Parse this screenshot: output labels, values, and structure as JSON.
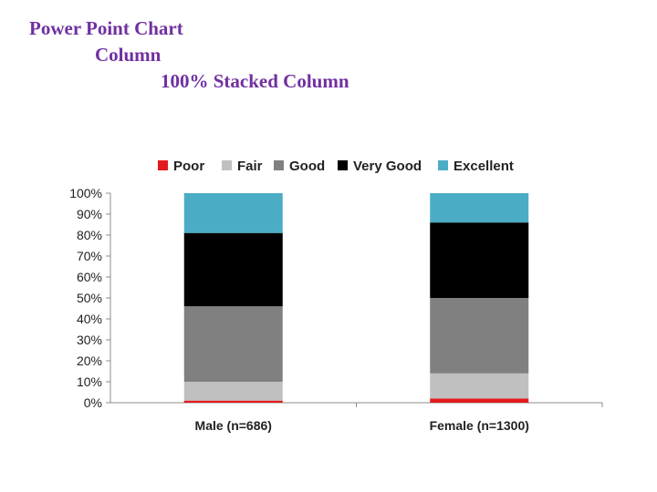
{
  "heading": {
    "line1": "Power Point Chart",
    "line2": "Column",
    "line3": "100% Stacked Column"
  },
  "chart_data": {
    "type": "bar",
    "stacked": "100%",
    "categories": [
      "Male (n=686)",
      "Female (n=1300)"
    ],
    "series": [
      {
        "name": "Poor",
        "color": "#e31a1c",
        "values": [
          1,
          2
        ]
      },
      {
        "name": "Fair",
        "color": "#c0c0c0",
        "values": [
          9,
          12
        ]
      },
      {
        "name": "Good",
        "color": "#808080",
        "values": [
          36,
          36
        ]
      },
      {
        "name": "Very Good",
        "color": "#000000",
        "values": [
          35,
          36
        ]
      },
      {
        "name": "Excellent",
        "color": "#4bacc6",
        "values": [
          19,
          14
        ]
      }
    ],
    "yticks": [
      "0%",
      "10%",
      "20%",
      "30%",
      "40%",
      "50%",
      "60%",
      "70%",
      "80%",
      "90%",
      "100%"
    ],
    "ylim": [
      0,
      100
    ],
    "legend_position": "top",
    "grid": false
  }
}
